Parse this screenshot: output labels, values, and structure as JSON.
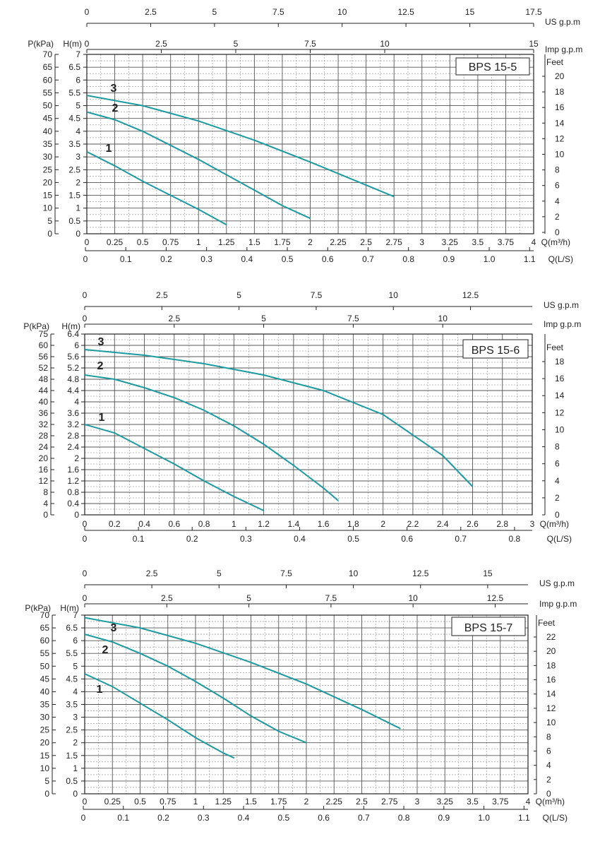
{
  "chart_data": [
    {
      "type": "line",
      "title": "BPS  15-5",
      "series": [
        {
          "name": "1",
          "x": [
            0,
            0.25,
            0.5,
            0.75,
            1.0,
            1.25
          ],
          "y": [
            3.2,
            2.65,
            2.05,
            1.5,
            0.95,
            0.35
          ]
        },
        {
          "name": "2",
          "x": [
            0,
            0.25,
            0.5,
            0.75,
            1.0,
            1.25,
            1.5,
            1.75,
            2.0
          ],
          "y": [
            4.75,
            4.45,
            4.0,
            3.45,
            2.9,
            2.3,
            1.7,
            1.1,
            0.6
          ]
        },
        {
          "name": "3",
          "x": [
            0,
            0.5,
            1.0,
            1.5,
            2.0,
            2.5,
            2.75
          ],
          "y": [
            5.4,
            5.0,
            4.4,
            3.65,
            2.8,
            1.9,
            1.45
          ]
        }
      ],
      "axes": {
        "q_m3h": {
          "label": "Q(m³/h)",
          "min": 0,
          "max": 4,
          "ticks": [
            "0",
            "0.25",
            "0.5",
            "0.75",
            "1",
            "1.25",
            "1.5",
            "1.75",
            "2",
            "2.25",
            "2.5",
            "2.75",
            "3",
            "3.25",
            "3.5",
            "3.75",
            "4"
          ]
        },
        "h_m": {
          "label": "H(m)",
          "min": 0,
          "max": 7,
          "ticks": [
            "0",
            "0.5",
            "1",
            "1.5",
            "2",
            "2.5",
            "3",
            "3.5",
            "4",
            "4.5",
            "5",
            "5.5",
            "6",
            "6.5",
            "7"
          ]
        },
        "p_kpa": {
          "label": "P(kPa)",
          "min": 0,
          "max": 70,
          "ticks": [
            "0",
            "5",
            "10",
            "15",
            "20",
            "25",
            "30",
            "35",
            "40",
            "45",
            "50",
            "55",
            "60",
            "65",
            "70"
          ]
        },
        "feet": {
          "label": "Feet",
          "ticks": [
            "0",
            "2",
            "4",
            "6",
            "8",
            "10",
            "12",
            "14",
            "16",
            "18",
            "20"
          ]
        },
        "q_ls": {
          "label": "Q(L/S)",
          "ticks": [
            "0",
            "0.1",
            "0.2",
            "0.3",
            "0.4",
            "0.5",
            "0.6",
            "0.7",
            "0.8",
            "0.9",
            "1.0",
            "1.1"
          ]
        },
        "us_gpm": {
          "label": "US  g.p.m",
          "min": 0,
          "max": 17.5,
          "ticks": [
            "0",
            "2.5",
            "5",
            "7.5",
            "10",
            "12.5",
            "15",
            "17.5"
          ]
        },
        "imp_gpm": {
          "label": "Imp  g.p.m",
          "ticks": [
            "0",
            "2.5",
            "5",
            "7.5",
            "10",
            "15"
          ]
        }
      }
    },
    {
      "type": "line",
      "title": "BPS 15-6",
      "series": [
        {
          "name": "1",
          "x": [
            0,
            0.2,
            0.4,
            0.6,
            0.8,
            1.0,
            1.2
          ],
          "y": [
            3.2,
            2.9,
            2.35,
            1.8,
            1.2,
            0.65,
            0.15
          ]
        },
        {
          "name": "2",
          "x": [
            0,
            0.2,
            0.4,
            0.6,
            0.8,
            1.0,
            1.2,
            1.4,
            1.6,
            1.7
          ],
          "y": [
            4.95,
            4.8,
            4.5,
            4.15,
            3.7,
            3.15,
            2.5,
            1.75,
            0.95,
            0.5
          ]
        },
        {
          "name": "3",
          "x": [
            0,
            0.4,
            0.8,
            1.2,
            1.6,
            2.0,
            2.4,
            2.6
          ],
          "y": [
            5.85,
            5.65,
            5.35,
            4.95,
            4.4,
            3.55,
            2.1,
            1.0
          ]
        }
      ],
      "axes": {
        "q_m3h": {
          "label": "Q(m³/h)",
          "min": 0,
          "max": 3,
          "ticks": [
            "0",
            "0.2",
            "0.4",
            "0.6",
            "0.8",
            "1",
            "1.2",
            "1.4",
            "1.6",
            "1.8",
            "2",
            "2.2",
            "2.4",
            "2.6",
            "2.8",
            "3"
          ]
        },
        "h_m": {
          "label": "H(m)",
          "min": 0,
          "max": 6.4,
          "ticks": [
            "0",
            "0.4",
            "0.8",
            "1.2",
            "1.6",
            "2",
            "2.4",
            "2.8",
            "3.2",
            "3.6",
            "4",
            "4.4",
            "4.8",
            "5.2",
            "5.6",
            "6",
            "6.4"
          ]
        },
        "p_kpa": {
          "label": "P(kPa)",
          "ticks": [
            "0",
            "4",
            "8",
            "12",
            "16",
            "20",
            "24",
            "28",
            "32",
            "36",
            "40",
            "44",
            "48",
            "52",
            "56",
            "60",
            "75"
          ]
        },
        "feet": {
          "label": "Feet",
          "ticks": [
            "0",
            "2",
            "4",
            "6",
            "8",
            "10",
            "12",
            "14",
            "16",
            "18"
          ]
        },
        "q_ls": {
          "label": "Q(L/S)",
          "ticks": [
            "0",
            "0.1",
            "0.2",
            "0.3",
            "0.4",
            "0.5",
            "0.6",
            "0.7",
            "0.8"
          ]
        },
        "us_gpm": {
          "label": "US  g.p.m",
          "ticks": [
            "0",
            "2.5",
            "5",
            "7.5",
            "10",
            "12.5"
          ]
        },
        "imp_gpm": {
          "label": "Imp  g.p.m",
          "ticks": [
            "0",
            "2.5",
            "5",
            "7.5",
            "10"
          ]
        }
      }
    },
    {
      "type": "line",
      "title": "BPS 15-7",
      "series": [
        {
          "name": "1",
          "x": [
            0,
            0.25,
            0.5,
            0.75,
            1.0,
            1.25,
            1.35
          ],
          "y": [
            4.7,
            4.2,
            3.55,
            2.9,
            2.2,
            1.6,
            1.4
          ]
        },
        {
          "name": "2",
          "x": [
            0,
            0.25,
            0.5,
            0.75,
            1.0,
            1.25,
            1.5,
            1.75,
            2.0
          ],
          "y": [
            6.25,
            5.95,
            5.5,
            5.0,
            4.4,
            3.75,
            3.05,
            2.45,
            2.0
          ]
        },
        {
          "name": "3",
          "x": [
            0,
            0.5,
            1.0,
            1.5,
            2.0,
            2.5,
            2.85
          ],
          "y": [
            6.9,
            6.5,
            5.9,
            5.15,
            4.3,
            3.3,
            2.55
          ]
        }
      ],
      "axes": {
        "q_m3h": {
          "label": "Q(m³/h)",
          "min": 0,
          "max": 4,
          "ticks": [
            "0",
            "0.25",
            "0.5",
            "0.75",
            "1",
            "1.25",
            "1.5",
            "1.75",
            "2",
            "2.25",
            "2.5",
            "2.75",
            "3",
            "3.25",
            "3.5",
            "3.75",
            "4"
          ]
        },
        "h_m": {
          "label": "H(m)",
          "min": 0,
          "max": 7,
          "ticks": [
            "0",
            "0.5",
            "1",
            "1.5",
            "2",
            "2.5",
            "3",
            "3.5",
            "4",
            "4.5",
            "5",
            "5.5",
            "6",
            "6.5",
            "7"
          ]
        },
        "p_kpa": {
          "label": "P(kPa)",
          "min": 0,
          "max": 70,
          "ticks": [
            "0",
            "5",
            "10",
            "15",
            "20",
            "25",
            "30",
            "35",
            "40",
            "45",
            "50",
            "55",
            "60",
            "65",
            "70"
          ]
        },
        "feet": {
          "label": "Feet",
          "ticks": [
            "0",
            "2",
            "4",
            "6",
            "8",
            "10",
            "12",
            "14",
            "16",
            "18",
            "20",
            "22"
          ]
        },
        "q_ls": {
          "label": "Q(L/S)",
          "ticks": [
            "0",
            "0.1",
            "0.2",
            "0.3",
            "0.4",
            "0.5",
            "0.6",
            "0.7",
            "0.8",
            "0.9",
            "1.0",
            "1.1"
          ]
        },
        "us_gpm": {
          "label": "US  g.p.m",
          "ticks": [
            "0",
            "2.5",
            "5",
            "7.5",
            "10",
            "12.5",
            "15"
          ]
        },
        "imp_gpm": {
          "label": "Imp  g.p.m",
          "ticks": [
            "0",
            "2.5",
            "5",
            "7.5",
            "10",
            "12.5"
          ]
        }
      }
    }
  ],
  "colors": {
    "curve": "#1b9aa0",
    "grid_major": "#555555",
    "grid_minor": "#888888",
    "axis": "#222222"
  }
}
